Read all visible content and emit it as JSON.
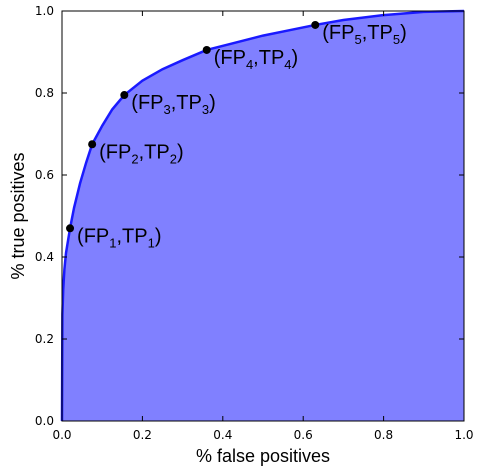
{
  "chart_data": {
    "type": "area",
    "xlabel": "% false positives",
    "ylabel": "% true positives",
    "xlim": [
      0.0,
      1.0
    ],
    "ylim": [
      0.0,
      1.0
    ],
    "x_ticks": [
      "0.0",
      "0.2",
      "0.4",
      "0.6",
      "0.8",
      "1.0"
    ],
    "y_ticks": [
      "0.0",
      "0.2",
      "0.4",
      "0.6",
      "0.8",
      "1.0"
    ],
    "grid": false,
    "fill_color": "#8080ff",
    "line_color": "#1a1aff",
    "curve": {
      "x": [
        0.0,
        0.001,
        0.003,
        0.006,
        0.01,
        0.015,
        0.02,
        0.03,
        0.045,
        0.06,
        0.075,
        0.1,
        0.125,
        0.155,
        0.2,
        0.25,
        0.3,
        0.36,
        0.42,
        0.5,
        0.56,
        0.63,
        0.7,
        0.8,
        0.9,
        1.0
      ],
      "y": [
        0.0,
        0.26,
        0.32,
        0.37,
        0.41,
        0.44,
        0.47,
        0.52,
        0.58,
        0.63,
        0.675,
        0.72,
        0.76,
        0.795,
        0.83,
        0.858,
        0.88,
        0.905,
        0.92,
        0.94,
        0.952,
        0.966,
        0.978,
        0.99,
        0.998,
        1.0
      ]
    },
    "points": [
      {
        "x": 0.02,
        "y": 0.47,
        "label_main": "FP",
        "label_sub": "1",
        "label_main2": "TP",
        "label_sub2": "1"
      },
      {
        "x": 0.075,
        "y": 0.675,
        "label_main": "FP",
        "label_sub": "2",
        "label_main2": "TP",
        "label_sub2": "2"
      },
      {
        "x": 0.155,
        "y": 0.795,
        "label_main": "FP",
        "label_sub": "3",
        "label_main2": "TP",
        "label_sub2": "3"
      },
      {
        "x": 0.36,
        "y": 0.905,
        "label_main": "FP",
        "label_sub": "4",
        "label_main2": "TP",
        "label_sub2": "4"
      },
      {
        "x": 0.63,
        "y": 0.966,
        "label_main": "FP",
        "label_sub": "5",
        "label_main2": "TP",
        "label_sub2": "5"
      }
    ]
  }
}
